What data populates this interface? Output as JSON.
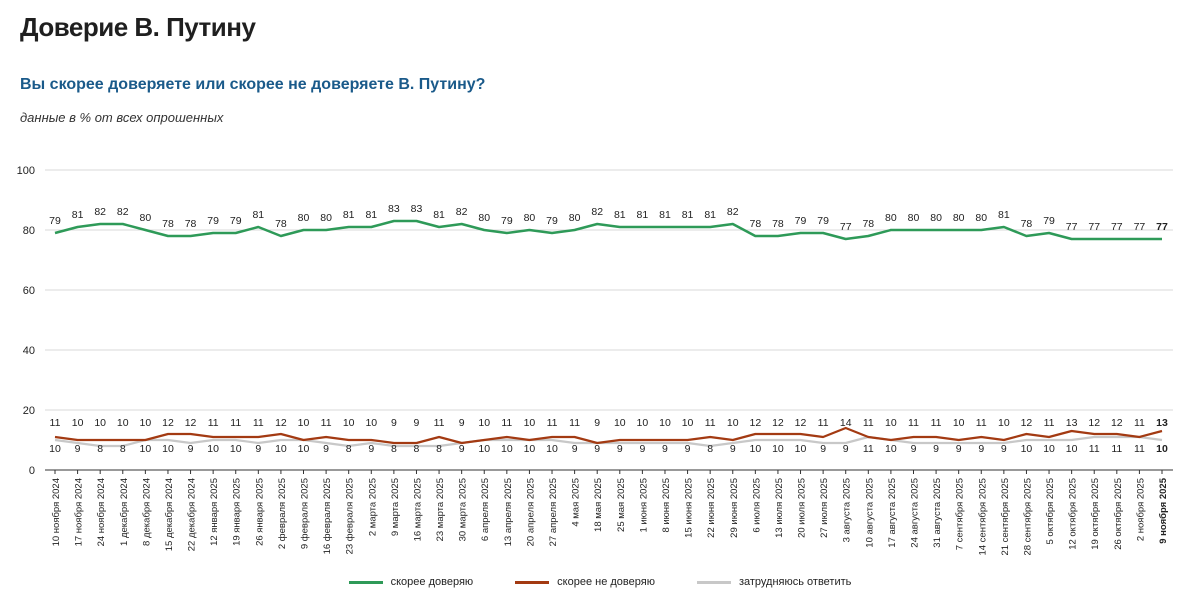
{
  "header": {
    "title": "Доверие В. Путину",
    "question": "Вы скорее доверяете или скорее не доверяете В. Путину?",
    "note": "данные в % от всех опрошенных"
  },
  "colors": {
    "trust": "#2e9a58",
    "distrust": "#a33a12",
    "undecided": "#c8c8c8",
    "grid": "#d9d9d9",
    "axis": "#333333"
  },
  "chart_data": {
    "type": "line",
    "title": "Доверие В. Путину",
    "subtitle": "Вы скорее доверяете или скорее не доверяете В. Путину?",
    "ylabel": "данные в % от всех опрошенных",
    "ylim": [
      0,
      100
    ],
    "yticks": [
      0,
      20,
      40,
      60,
      80,
      100
    ],
    "grid": true,
    "categories": [
      "10 ноября 2024",
      "17 ноября 2024",
      "24 ноября 2024",
      "1 декабря 2024",
      "8 декабря 2024",
      "15 декабря 2024",
      "22 декабря 2024",
      "12 января 2025",
      "19 января 2025",
      "26 января 2025",
      "2 февраля 2025",
      "9 февраля 2025",
      "16 февраля 2025",
      "23 февраля 2025",
      "2 марта 2025",
      "9 марта 2025",
      "16 марта 2025",
      "23 марта 2025",
      "30 марта 2025",
      "6 апреля 2025",
      "13 апреля 2025",
      "20 апреля 2025",
      "27 апреля 2025",
      "4 мая 2025",
      "18 мая 2025",
      "25 мая 2025",
      "1 июня 2025",
      "8 июня 2025",
      "15 июня 2025",
      "22 июня 2025",
      "29 июня 2025",
      "6 июля 2025",
      "13 июля 2025",
      "20 июля 2025",
      "27 июля 2025",
      "3 августа 2025",
      "10 августа 2025",
      "17 августа 2025",
      "24 августа 2025",
      "31 августа 2025",
      "7 сентября 2025",
      "14 сентября 2025",
      "21 сентября 2025",
      "28 сентября 2025",
      "5 октября 2025",
      "12 октября 2025",
      "19 октября 2025",
      "26 октября 2025",
      "2 ноября 2025",
      "9 ноября 2025"
    ],
    "series": [
      {
        "name": "скорее доверяю",
        "values": [
          79,
          81,
          82,
          82,
          80,
          78,
          78,
          79,
          79,
          81,
          78,
          80,
          80,
          81,
          81,
          83,
          83,
          81,
          82,
          80,
          79,
          80,
          79,
          80,
          82,
          81,
          81,
          81,
          81,
          81,
          82,
          78,
          78,
          79,
          79,
          77,
          78,
          80,
          80,
          80,
          80,
          80,
          81,
          78,
          79,
          77,
          77,
          77,
          77,
          77
        ]
      },
      {
        "name": "скорее не доверяю",
        "values": [
          11,
          10,
          10,
          10,
          10,
          12,
          12,
          11,
          11,
          11,
          12,
          10,
          11,
          10,
          10,
          9,
          9,
          11,
          9,
          10,
          11,
          10,
          11,
          11,
          9,
          10,
          10,
          10,
          10,
          11,
          10,
          12,
          12,
          12,
          11,
          14,
          11,
          10,
          11,
          11,
          10,
          11,
          10,
          12,
          11,
          13,
          12,
          12,
          11,
          13
        ]
      },
      {
        "name": "затрудняюсь ответить",
        "values": [
          10,
          9,
          8,
          8,
          10,
          10,
          9,
          10,
          10,
          9,
          10,
          10,
          9,
          8,
          9,
          8,
          8,
          8,
          9,
          10,
          10,
          10,
          10,
          9,
          9,
          9,
          9,
          9,
          9,
          8,
          9,
          10,
          10,
          10,
          9,
          9,
          11,
          10,
          9,
          9,
          9,
          9,
          9,
          10,
          10,
          10,
          11,
          11,
          11,
          10
        ]
      }
    ]
  }
}
